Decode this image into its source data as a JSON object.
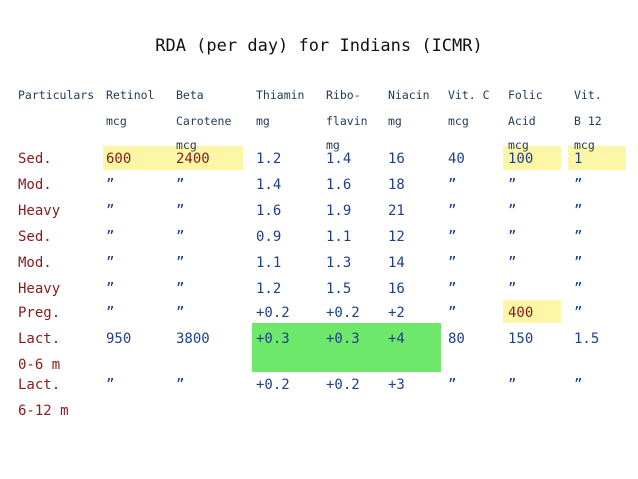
{
  "title": "RDA (per day) for Indians (ICMR)",
  "colors": {
    "yellow_highlight": "#fbf7a6",
    "green_highlight": "#6ee86b",
    "row_label_color": "#8a1a1a",
    "value_color": "#1e3f8a",
    "header_color": "#1f3a5a"
  },
  "headers": [
    [
      "Particulars",
      "",
      ""
    ],
    [
      "Retinol",
      "mcg",
      ""
    ],
    [
      "Beta",
      "Carotene",
      "mcg"
    ],
    [
      "Thiamin",
      "mg",
      ""
    ],
    [
      "Ribo-",
      "flavin",
      "mg"
    ],
    [
      "Niacin",
      "mg",
      ""
    ],
    [
      "Vit. C",
      "mcg",
      ""
    ],
    [
      "Folic",
      "Acid",
      "mcg"
    ],
    [
      "Vit.",
      "B 12",
      "mcg"
    ]
  ],
  "rows": [
    {
      "label": [
        "Sed.",
        ""
      ],
      "values": [
        "600",
        "2400",
        "1.2",
        "1.4",
        "16",
        "40",
        "100",
        "1"
      ]
    },
    {
      "label": [
        "Mod.",
        ""
      ],
      "values": [
        "”",
        "”",
        "1.4",
        "1.6",
        "18",
        "”",
        "”",
        "”"
      ]
    },
    {
      "label": [
        "Heavy",
        ""
      ],
      "values": [
        "”",
        "”",
        "1.6",
        "1.9",
        "21",
        "”",
        "”",
        "”"
      ]
    },
    {
      "label": [
        "Sed.",
        ""
      ],
      "values": [
        "”",
        "”",
        "0.9",
        "1.1",
        "12",
        "”",
        "”",
        "”"
      ]
    },
    {
      "label": [
        "Mod.",
        ""
      ],
      "values": [
        "”",
        "”",
        "1.1",
        "1.3",
        "14",
        "”",
        "”",
        "”"
      ]
    },
    {
      "label": [
        "Heavy",
        ""
      ],
      "values": [
        "”",
        "”",
        "1.2",
        "1.5",
        "16",
        "”",
        "”",
        "”"
      ]
    },
    {
      "label": [
        "Preg.",
        ""
      ],
      "values": [
        "”",
        "”",
        "+0.2",
        "+0.2",
        "+2",
        "”",
        "400",
        "”"
      ]
    },
    {
      "label": [
        "Lact.",
        "0-6 m"
      ],
      "values": [
        "950",
        "3800",
        "+0.3",
        "+0.3",
        "+4",
        "80",
        "150",
        "1.5"
      ]
    },
    {
      "label": [
        "Lact.",
        "6-12 m"
      ],
      "values": [
        "”",
        "”",
        "+0.2",
        "+0.2",
        "+3",
        "”",
        "”",
        "”"
      ]
    }
  ]
}
